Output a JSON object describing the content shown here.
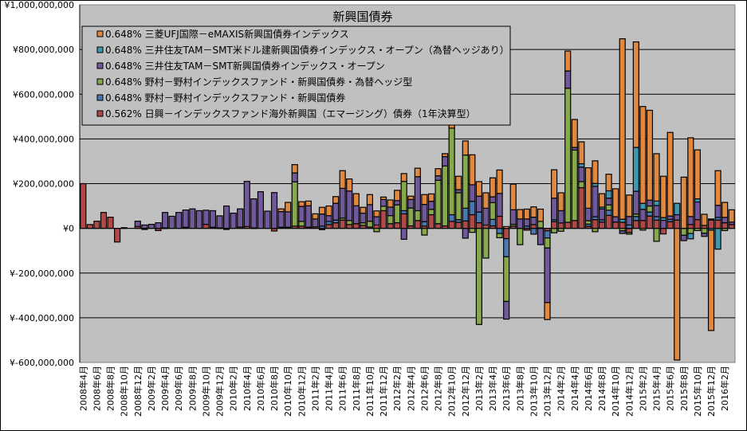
{
  "chart_data": {
    "type": "bar",
    "stacked": true,
    "title": "新興国債券",
    "xlabel": "",
    "ylabel": "",
    "ylim": [
      -600000000,
      1000000000
    ],
    "y_ticks": [
      1000000000,
      800000000,
      600000000,
      400000000,
      200000000,
      0,
      -200000000,
      -400000000,
      -600000000
    ],
    "y_tick_labels": [
      "¥1,000,000,000",
      "¥800,000,000",
      "¥600,000,000",
      "¥400,000,000",
      "¥200,000,000",
      "¥0",
      "¥-200,000,000",
      "¥-400,000,000",
      "¥-600,000,000"
    ],
    "grid": true,
    "legend_position": "top-left",
    "unit": "million yen",
    "x_tick_labels": [
      "2008年4月",
      "2008年6月",
      "2008年8月",
      "2008年10月",
      "2008年12月",
      "2009年2月",
      "2009年4月",
      "2009年6月",
      "2009年8月",
      "2009年10月",
      "2009年12月",
      "2010年2月",
      "2010年4月",
      "2010年6月",
      "2010年8月",
      "2010年10月",
      "2010年12月",
      "2011年2月",
      "2011年4月",
      "2011年6月",
      "2011年8月",
      "2011年10月",
      "2011年12月",
      "2012年2月",
      "2012年4月",
      "2012年6月",
      "2012年8月",
      "2012年10月",
      "2012年12月",
      "2013年2月",
      "2013年4月",
      "2013年6月",
      "2013年8月",
      "2013年10月",
      "2013年12月",
      "2014年2月",
      "2014年4月",
      "2014年6月",
      "2014年8月",
      "2014年10月",
      "2014年12月",
      "2015年2月",
      "2015年4月",
      "2015年6月",
      "2015年8月",
      "2015年10月",
      "2015年12月",
      "2016年2月"
    ],
    "series": [
      {
        "name": "0.562% 日興－インデックスファンド海外新興国（エマージング）債券（1年決算型）",
        "color": "#b04848",
        "values": [
          200,
          17,
          32,
          71,
          50,
          -61,
          3,
          0,
          8,
          -5,
          0,
          -10,
          2,
          0,
          0,
          5,
          0,
          0,
          18,
          5,
          2,
          -5,
          0,
          6,
          8,
          2,
          0,
          0,
          -12,
          5,
          5,
          10,
          10,
          5,
          7,
          -6,
          17,
          25,
          37,
          17,
          21,
          13,
          6,
          15,
          79,
          21,
          25,
          65,
          11,
          35,
          10,
          61,
          21,
          11,
          31,
          27,
          33,
          61,
          25,
          15,
          11,
          54,
          -46,
          10,
          0,
          -8,
          17,
          2,
          -11,
          30,
          24,
          27,
          35,
          182,
          9,
          39,
          28,
          58,
          28,
          27,
          -19,
          35,
          35,
          55,
          37,
          -25,
          30,
          37,
          0,
          17,
          39,
          13,
          37,
          37,
          25,
          17
        ]
      },
      {
        "name": "0.648% 野村－野村インデックスファンド・新興国債券",
        "color": "#4a78b0",
        "values": [
          0,
          0,
          0,
          0,
          0,
          0,
          0,
          0,
          0,
          0,
          0,
          0,
          0,
          0,
          0,
          0,
          0,
          0,
          0,
          0,
          0,
          0,
          0,
          0,
          0,
          0,
          0,
          0,
          0,
          0,
          0,
          0,
          0,
          0,
          0,
          10,
          14,
          12,
          0,
          0,
          0,
          0,
          0,
          0,
          0,
          0,
          0,
          14,
          0,
          0,
          20,
          0,
          0,
          0,
          30,
          12,
          57,
          60,
          48,
          0,
          29,
          -23,
          -81,
          0,
          0,
          10,
          -26,
          0,
          -32,
          8,
          0,
          0,
          0,
          0,
          10,
          13,
          10,
          23,
          0,
          0,
          15,
          18,
          0,
          18,
          15,
          0,
          10,
          0,
          0,
          0,
          0,
          0,
          5,
          12,
          0,
          0
        ]
      },
      {
        "name": "0.648% 野村－野村インデックスファンド・新興国債券・為替ヘッジ型",
        "color": "#88a84c",
        "values": [
          0,
          0,
          0,
          0,
          0,
          0,
          0,
          0,
          0,
          0,
          0,
          0,
          0,
          0,
          0,
          0,
          0,
          0,
          0,
          0,
          0,
          0,
          0,
          0,
          0,
          0,
          0,
          0,
          0,
          0,
          0,
          198,
          21,
          0,
          0,
          0,
          0,
          0,
          9,
          18,
          0,
          12,
          26,
          -15,
          20,
          36,
          80,
          131,
          80,
          44,
          -30,
          24,
          194,
          268,
          387,
          120,
          238,
          -18,
          -430,
          -133,
          75,
          -19,
          -200,
          8,
          -73,
          0,
          0,
          29,
          -45,
          -20,
          -13,
          600,
          315,
          27,
          15,
          -15,
          0,
          24,
          0,
          -11,
          -7,
          11,
          -8,
          27,
          -58,
          0,
          0,
          0,
          -31,
          -23,
          -10,
          -22,
          0,
          0,
          -10,
          0
        ]
      },
      {
        "name": "0.648% 三井住友TAM－SMT新興国債券インデックス・オープン",
        "color": "#70589a",
        "values": [
          0,
          0,
          0,
          0,
          0,
          0,
          0,
          0,
          24,
          15,
          18,
          25,
          69,
          54,
          71,
          77,
          87,
          79,
          63,
          74,
          54,
          100,
          68,
          81,
          202,
          130,
          164,
          77,
          160,
          70,
          69,
          40,
          67,
          96,
          35,
          54,
          26,
          75,
          133,
          132,
          80,
          43,
          74,
          37,
          30,
          38,
          19,
          -49,
          38,
          152,
          77,
          36,
          20,
          42,
          0,
          14,
          -44,
          74,
          71,
          75,
          26,
          102,
          -79,
          65,
          42,
          32,
          33,
          -73,
          -244,
          97,
          55,
          77,
          12,
          65,
          56,
          136,
          49,
          30,
          24,
          -12,
          38,
          102,
          50,
          26,
          50,
          36,
          15,
          24,
          -24,
          36,
          79,
          -14,
          0,
          54,
          24,
          11
        ]
      },
      {
        "name": "0.648% 三井住友TAM－SMT米ドル建新興国債券インデックス・オープン（為替ヘッジあり）",
        "color": "#4098b0",
        "values": [
          0,
          0,
          0,
          0,
          0,
          0,
          0,
          0,
          0,
          0,
          0,
          0,
          0,
          0,
          0,
          0,
          0,
          0,
          0,
          0,
          0,
          0,
          0,
          0,
          0,
          0,
          0,
          0,
          0,
          0,
          0,
          0,
          0,
          0,
          0,
          0,
          0,
          0,
          0,
          0,
          0,
          0,
          0,
          0,
          0,
          0,
          0,
          0,
          0,
          0,
          0,
          0,
          0,
          0,
          0,
          0,
          0,
          0,
          0,
          0,
          0,
          0,
          0,
          0,
          0,
          0,
          0,
          0,
          0,
          0,
          0,
          0,
          0,
          15,
          0,
          13,
          8,
          33,
          0,
          14,
          0,
          196,
          27,
          0,
          20,
          12,
          0,
          51,
          0,
          -24,
          14,
          0,
          -8,
          -93,
          0,
          0
        ]
      },
      {
        "name": "0.648% 三菱UFJ国際－eMAXIS新興国債券インデックス",
        "color": "#e08840",
        "values": [
          0,
          0,
          0,
          0,
          0,
          0,
          0,
          0,
          0,
          0,
          0,
          0,
          0,
          0,
          0,
          0,
          0,
          0,
          0,
          0,
          0,
          0,
          0,
          0,
          0,
          0,
          0,
          0,
          0,
          12,
          42,
          37,
          21,
          21,
          23,
          30,
          43,
          30,
          79,
          54,
          54,
          26,
          45,
          26,
          11,
          32,
          46,
          35,
          15,
          38,
          44,
          33,
          32,
          13,
          25,
          60,
          63,
          134,
          65,
          69,
          85,
          105,
          8,
          115,
          42,
          44,
          46,
          55,
          -76,
          127,
          80,
          89,
          125,
          98,
          181,
          101,
          60,
          74,
          125,
          807,
          96,
          472,
          433,
          402,
          212,
          185,
          374,
          -589,
          229,
          352,
          219,
          50,
          -449,
          155,
          67,
          55
        ]
      }
    ],
    "legend_order": [
      5,
      4,
      3,
      2,
      1,
      0
    ]
  }
}
